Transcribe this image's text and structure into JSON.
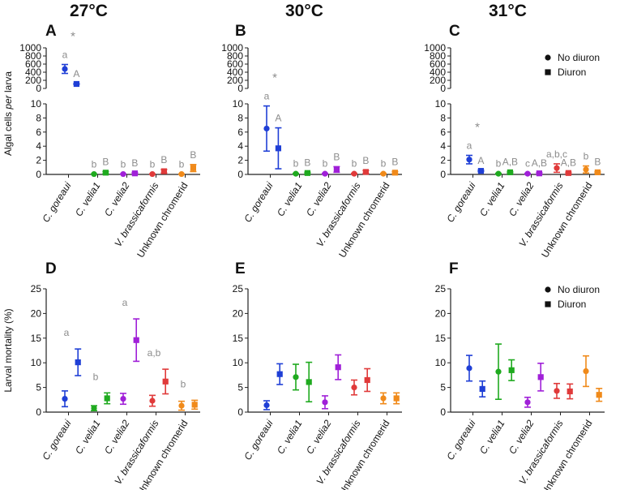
{
  "figure": {
    "temperature_headings": [
      "27°C",
      "30°C",
      "31°C"
    ],
    "legend": {
      "no_diuron": "No diuron",
      "diuron": "Diuron"
    }
  },
  "colors": {
    "C. goreaui": "#1f3fd6",
    "C. velia1": "#1faa1f",
    "C. velia2": "#a020d8",
    "V. brassicaformis": "#e03a3a",
    "Unknown chromerid": "#f08a1a",
    "sig": "#8c8c8c",
    "axis": "#222222"
  },
  "chart_data": [
    {
      "panel": "A",
      "temperature": "27°C",
      "type": "scatter",
      "ylabel": "Algal cells per larva",
      "y_broken": true,
      "ylim_lower": [
        0,
        10
      ],
      "yticks_lower": [
        0,
        2,
        4,
        6,
        8,
        10
      ],
      "ylim_upper": [
        0,
        1000
      ],
      "yticks_upper": [
        0,
        200,
        400,
        600,
        800,
        1000
      ],
      "categories": [
        "C. goreaui",
        "C. velia1",
        "C. velia2",
        "V. brassicaformis",
        "Unknown chromerid"
      ],
      "series": [
        {
          "name": "No diuron",
          "marker": "circle",
          "values": [
            480,
            0.05,
            0.05,
            0.05,
            0.05
          ],
          "err": [
            110,
            0.02,
            0.02,
            0.02,
            0.02
          ],
          "labels": [
            "a",
            "b",
            "b",
            "b",
            "b"
          ]
        },
        {
          "name": "Diuron",
          "marker": "square",
          "values": [
            110,
            0.25,
            0.15,
            0.45,
            0.9
          ],
          "err": [
            12,
            0.15,
            0.1,
            0.25,
            0.5
          ],
          "labels": [
            "A",
            "B",
            "B",
            "B",
            "B"
          ]
        }
      ],
      "asterisks": [
        "C. goreaui"
      ]
    },
    {
      "panel": "B",
      "temperature": "30°C",
      "type": "scatter",
      "y_broken": true,
      "ylim_lower": [
        0,
        10
      ],
      "yticks_lower": [
        0,
        2,
        4,
        6,
        8,
        10
      ],
      "ylim_upper": [
        0,
        1000
      ],
      "yticks_upper": [
        0,
        200,
        400,
        600,
        800,
        1000
      ],
      "categories": [
        "C. goreaui",
        "C. velia1",
        "C. velia2",
        "V. brassicaformis",
        "Unknown chromerid"
      ],
      "series": [
        {
          "name": "No diuron",
          "marker": "circle",
          "values": [
            6.5,
            0.1,
            0.1,
            0.1,
            0.1
          ],
          "err": [
            3.2,
            0.05,
            0.05,
            0.05,
            0.05
          ],
          "labels": [
            "a",
            "b",
            "b",
            "b",
            "b"
          ]
        },
        {
          "name": "Diuron",
          "marker": "square",
          "values": [
            3.7,
            0.2,
            0.7,
            0.35,
            0.25
          ],
          "err": [
            2.9,
            0.1,
            0.4,
            0.2,
            0.15
          ],
          "labels": [
            "A",
            "B",
            "B",
            "B",
            "B"
          ]
        }
      ],
      "asterisks": [
        "C. goreaui"
      ]
    },
    {
      "panel": "C",
      "temperature": "31°C",
      "type": "scatter",
      "y_broken": true,
      "ylim_lower": [
        0,
        10
      ],
      "yticks_lower": [
        0,
        2,
        4,
        6,
        8,
        10
      ],
      "ylim_upper": [
        0,
        1000
      ],
      "yticks_upper": [
        0,
        200,
        400,
        600,
        800,
        1000
      ],
      "categories": [
        "C. goreaui",
        "C. velia1",
        "C. velia2",
        "V. brassicaformis",
        "Unknown chromerid"
      ],
      "series": [
        {
          "name": "No diuron",
          "marker": "circle",
          "values": [
            2.1,
            0.1,
            0.1,
            0.9,
            0.7
          ],
          "err": [
            0.6,
            0.05,
            0.05,
            0.6,
            0.5
          ],
          "labels": [
            "a",
            "b",
            "c",
            "a,b,c",
            "b"
          ]
        },
        {
          "name": "Diuron",
          "marker": "square",
          "values": [
            0.5,
            0.3,
            0.15,
            0.2,
            0.3
          ],
          "err": [
            0.1,
            0.1,
            0.1,
            0.1,
            0.1
          ],
          "labels": [
            "A",
            "A,B",
            "A,B",
            "A,B",
            "B"
          ]
        }
      ],
      "asterisks": [
        "C. goreaui"
      ],
      "legend": true
    },
    {
      "panel": "D",
      "temperature": "27°C",
      "type": "scatter",
      "ylabel": "Larval mortality (%)",
      "ylim": [
        0,
        25
      ],
      "yticks": [
        0,
        5,
        10,
        15,
        20,
        25
      ],
      "categories": [
        "C. goreaui",
        "C. velia1",
        "C. velia2",
        "V. brassicaformis",
        "Unknown chromerid"
      ],
      "series": [
        {
          "name": "No diuron",
          "marker": "circle",
          "values": [
            2.7,
            0.8,
            2.7,
            2.3,
            1.3
          ],
          "err": [
            1.6,
            0.5,
            1.1,
            1.1,
            0.9
          ]
        },
        {
          "name": "Diuron",
          "marker": "square",
          "values": [
            10.1,
            2.8,
            14.6,
            6.2,
            1.5
          ],
          "err": [
            2.7,
            1.1,
            4.3,
            2.5,
            0.9
          ]
        }
      ],
      "group_labels": [
        "a",
        "b",
        "a",
        "a,b",
        "b"
      ]
    },
    {
      "panel": "E",
      "temperature": "30°C",
      "type": "scatter",
      "ylim": [
        0,
        25
      ],
      "yticks": [
        0,
        5,
        10,
        15,
        20,
        25
      ],
      "categories": [
        "C. goreaui",
        "C. velia1",
        "C. velia2",
        "V. brassicaformis",
        "Unknown chromerid"
      ],
      "series": [
        {
          "name": "No diuron",
          "marker": "circle",
          "values": [
            1.4,
            7.1,
            2.0,
            5.0,
            2.8
          ],
          "err": [
            0.9,
            2.6,
            1.3,
            1.5,
            1.1
          ]
        },
        {
          "name": "Diuron",
          "marker": "square",
          "values": [
            7.7,
            6.1,
            9.1,
            6.5,
            2.8
          ],
          "err": [
            2.1,
            4.0,
            2.5,
            2.3,
            1.1
          ]
        }
      ]
    },
    {
      "panel": "F",
      "temperature": "31°C",
      "type": "scatter",
      "ylim": [
        0,
        25
      ],
      "yticks": [
        0,
        5,
        10,
        15,
        20,
        25
      ],
      "categories": [
        "C. goreaui",
        "C. velia1",
        "C. velia2",
        "V. brassicaformis",
        "Unknown chromerid"
      ],
      "series": [
        {
          "name": "No diuron",
          "marker": "circle",
          "values": [
            8.9,
            8.2,
            2.0,
            4.3,
            8.3
          ],
          "err": [
            2.6,
            5.6,
            1.0,
            1.5,
            3.1
          ]
        },
        {
          "name": "Diuron",
          "marker": "square",
          "values": [
            4.7,
            8.5,
            7.1,
            4.2,
            3.5
          ],
          "err": [
            1.6,
            2.1,
            2.8,
            1.5,
            1.3
          ]
        }
      ],
      "legend": true
    }
  ]
}
